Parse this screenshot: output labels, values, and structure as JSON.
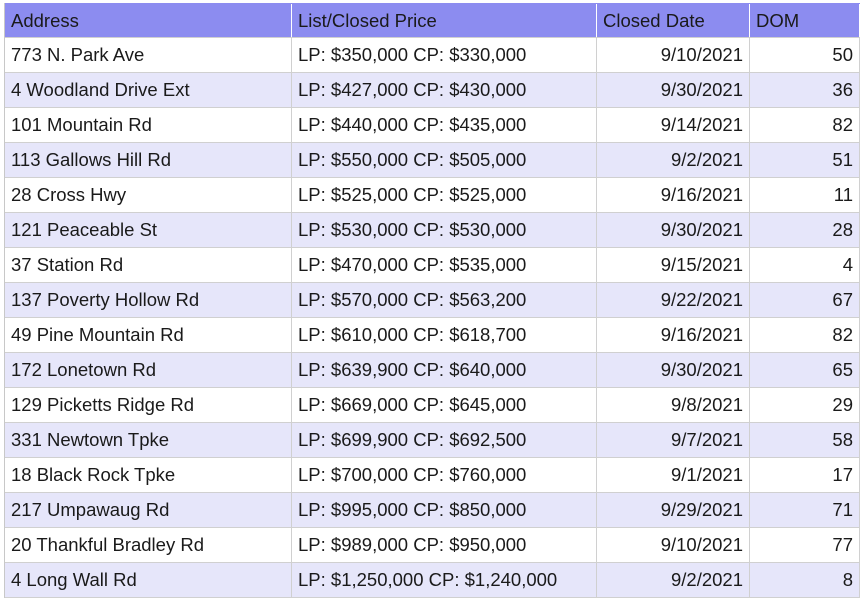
{
  "table": {
    "columns": [
      "Address",
      "List/Closed Price",
      "Closed Date",
      "DOM"
    ],
    "rows": [
      [
        "773 N. Park Ave",
        "LP: $350,000 CP: $330,000",
        "9/10/2021",
        50
      ],
      [
        "4 Woodland Drive Ext",
        "LP: $427,000 CP: $430,000",
        "9/30/2021",
        36
      ],
      [
        "101 Mountain Rd",
        "LP: $440,000 CP: $435,000",
        "9/14/2021",
        82
      ],
      [
        "113 Gallows Hill Rd",
        "LP: $550,000 CP: $505,000",
        "9/2/2021",
        51
      ],
      [
        "28 Cross Hwy",
        "LP: $525,000 CP: $525,000",
        "9/16/2021",
        11
      ],
      [
        "121 Peaceable St",
        "LP: $530,000 CP: $530,000",
        "9/30/2021",
        28
      ],
      [
        "37 Station Rd",
        "LP: $470,000 CP: $535,000",
        "9/15/2021",
        4
      ],
      [
        "137 Poverty Hollow Rd",
        "LP: $570,000 CP: $563,200",
        "9/22/2021",
        67
      ],
      [
        "49 Pine Mountain Rd",
        "LP: $610,000 CP: $618,700",
        "9/16/2021",
        82
      ],
      [
        "172 Lonetown Rd",
        "LP: $639,900 CP: $640,000",
        "9/30/2021",
        65
      ],
      [
        "129 Picketts Ridge Rd",
        "LP: $669,000 CP: $645,000",
        "9/8/2021",
        29
      ],
      [
        "331 Newtown Tpke",
        "LP: $699,900 CP: $692,500",
        "9/7/2021",
        58
      ],
      [
        "18 Black Rock Tpke",
        "LP: $700,000 CP: $760,000",
        "9/1/2021",
        17
      ],
      [
        "217 Umpawaug Rd",
        "LP: $995,000 CP: $850,000",
        "9/29/2021",
        71
      ],
      [
        "20 Thankful Bradley Rd",
        "LP: $989,000 CP: $950,000",
        "9/10/2021",
        77
      ],
      [
        "4 Long Wall Rd",
        "LP: $1,250,000 CP: $1,240,000",
        "9/2/2021",
        8
      ]
    ]
  }
}
